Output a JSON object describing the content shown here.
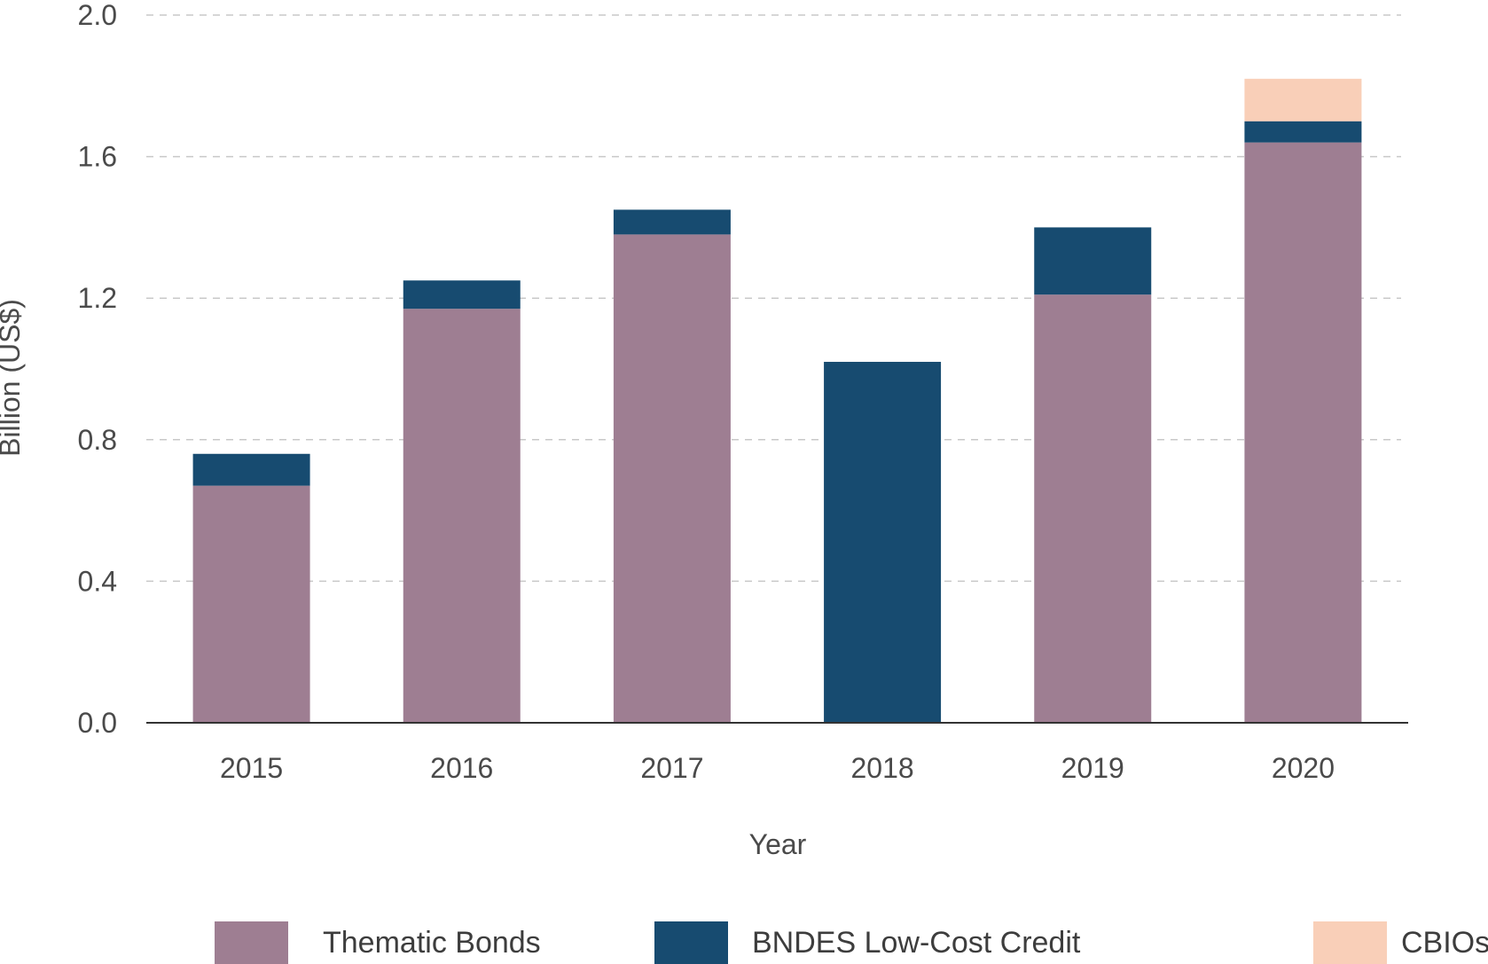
{
  "chart_data": {
    "type": "bar",
    "stacked": true,
    "categories": [
      "2015",
      "2016",
      "2017",
      "2018",
      "2019",
      "2020"
    ],
    "series": [
      {
        "name": "Thematic Bonds",
        "color": "#9e7e92",
        "values": [
          0.67,
          1.17,
          1.38,
          0.0,
          1.21,
          1.64
        ]
      },
      {
        "name": "BNDES Low-Cost Credit",
        "color": "#174b70",
        "values": [
          0.09,
          0.08,
          0.07,
          1.02,
          0.19,
          0.06
        ]
      },
      {
        "name": "CBIOs",
        "color": "#f9cfb8",
        "values": [
          0.0,
          0.0,
          0.0,
          0.0,
          0.0,
          0.12
        ]
      }
    ],
    "xlabel": "Year",
    "ylabel": "Billion (US$)",
    "ylim": [
      0.0,
      2.0
    ],
    "yticks": [
      "0.0",
      "0.4",
      "0.8",
      "1.2",
      "1.6",
      "2.0"
    ],
    "ytick_values": [
      0.0,
      0.4,
      0.8,
      1.2,
      1.6,
      2.0
    ],
    "grid": true,
    "legend_position": "bottom"
  }
}
